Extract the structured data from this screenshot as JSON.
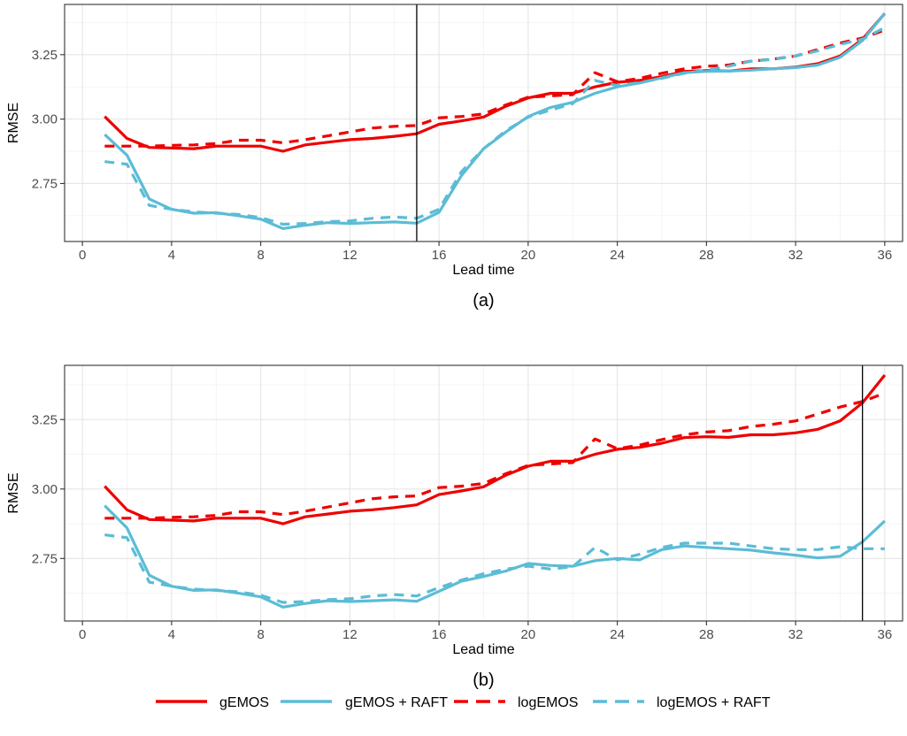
{
  "colors": {
    "gEMOS": "#ee0000",
    "logEMOS": "#ee0000",
    "raft": "#5bbcd6",
    "grid_major": "#e5e5e5",
    "grid_minor": "#f2f2f2",
    "panel_border": "#333333",
    "vline": "#000000"
  },
  "legend": {
    "position": "bottom",
    "items": [
      {
        "key": "gEMOS",
        "label": "gEMOS",
        "color": "#ee0000",
        "dash": "solid"
      },
      {
        "key": "gEMOS_RAFT",
        "label": "gEMOS + RAFT",
        "color": "#5bbcd6",
        "dash": "solid"
      },
      {
        "key": "logEMOS",
        "label": "logEMOS",
        "color": "#ee0000",
        "dash": "dashed"
      },
      {
        "key": "logEMOS_RAFT",
        "label": "logEMOS + RAFT",
        "color": "#5bbcd6",
        "dash": "dashed"
      }
    ]
  },
  "chart_data": [
    {
      "type": "line",
      "panel_label": "(a)",
      "xlabel": "Lead time",
      "ylabel": "RMSE",
      "xlim": [
        -0.8,
        36.8
      ],
      "ylim": [
        2.525,
        3.445
      ],
      "xticks": [
        0,
        4,
        8,
        12,
        16,
        20,
        24,
        28,
        32,
        36
      ],
      "yticks": [
        2.75,
        3.0,
        3.25
      ],
      "ytick_labels": [
        "2.75",
        "3.00",
        "3.25"
      ],
      "grid": true,
      "vline": 15,
      "x": [
        1,
        2,
        3,
        4,
        5,
        6,
        7,
        8,
        9,
        10,
        11,
        12,
        13,
        14,
        15,
        16,
        17,
        18,
        19,
        20,
        21,
        22,
        23,
        24,
        25,
        26,
        27,
        28,
        29,
        30,
        31,
        32,
        33,
        34,
        35,
        36
      ],
      "series": [
        {
          "name": "gEMOS",
          "color": "#ee0000",
          "dash": "solid",
          "values": [
            3.01,
            2.925,
            2.89,
            2.888,
            2.885,
            2.895,
            2.895,
            2.895,
            2.875,
            2.9,
            2.91,
            2.92,
            2.925,
            2.933,
            2.943,
            2.98,
            2.993,
            3.008,
            3.05,
            3.082,
            3.1,
            3.1,
            3.125,
            3.143,
            3.15,
            3.165,
            3.185,
            3.188,
            3.186,
            3.195,
            3.195,
            3.202,
            3.215,
            3.245,
            3.31,
            3.41
          ]
        },
        {
          "name": "gEMOS + RAFT",
          "color": "#5bbcd6",
          "dash": "solid",
          "values": [
            2.94,
            2.86,
            2.69,
            2.65,
            2.635,
            2.637,
            2.625,
            2.612,
            2.575,
            2.588,
            2.598,
            2.595,
            2.598,
            2.601,
            2.596,
            2.638,
            2.78,
            2.885,
            2.95,
            3.01,
            3.045,
            3.065,
            3.1,
            3.125,
            3.14,
            3.16,
            3.18,
            3.185,
            3.186,
            3.19,
            3.195,
            3.2,
            3.21,
            3.24,
            3.305,
            3.41
          ]
        },
        {
          "name": "logEMOS",
          "color": "#ee0000",
          "dash": "dashed",
          "values": [
            2.895,
            2.895,
            2.895,
            2.898,
            2.9,
            2.905,
            2.918,
            2.918,
            2.908,
            2.92,
            2.935,
            2.95,
            2.965,
            2.972,
            2.975,
            3.005,
            3.01,
            3.02,
            3.055,
            3.085,
            3.09,
            3.095,
            3.18,
            3.145,
            3.158,
            3.178,
            3.195,
            3.205,
            3.21,
            3.225,
            3.233,
            3.245,
            3.27,
            3.295,
            3.315,
            3.345
          ]
        },
        {
          "name": "logEMOS + RAFT",
          "color": "#5bbcd6",
          "dash": "dashed",
          "values": [
            2.835,
            2.825,
            2.665,
            2.65,
            2.64,
            2.635,
            2.63,
            2.618,
            2.592,
            2.595,
            2.602,
            2.605,
            2.615,
            2.62,
            2.615,
            2.65,
            2.795,
            2.885,
            2.955,
            3.008,
            3.035,
            3.06,
            3.15,
            3.13,
            3.142,
            3.158,
            3.178,
            3.19,
            3.205,
            3.225,
            3.232,
            3.245,
            3.265,
            3.29,
            3.31,
            3.355
          ]
        }
      ]
    },
    {
      "type": "line",
      "panel_label": "(b)",
      "xlabel": "Lead time",
      "ylabel": "RMSE",
      "xlim": [
        -0.8,
        36.8
      ],
      "ylim": [
        2.525,
        3.445
      ],
      "xticks": [
        0,
        4,
        8,
        12,
        16,
        20,
        24,
        28,
        32,
        36
      ],
      "yticks": [
        2.75,
        3.0,
        3.25
      ],
      "ytick_labels": [
        "2.75",
        "3.00",
        "3.25"
      ],
      "grid": true,
      "vline": 35,
      "x": [
        1,
        2,
        3,
        4,
        5,
        6,
        7,
        8,
        9,
        10,
        11,
        12,
        13,
        14,
        15,
        16,
        17,
        18,
        19,
        20,
        21,
        22,
        23,
        24,
        25,
        26,
        27,
        28,
        29,
        30,
        31,
        32,
        33,
        34,
        35,
        36
      ],
      "series": [
        {
          "name": "gEMOS",
          "color": "#ee0000",
          "dash": "solid",
          "values": [
            3.01,
            2.925,
            2.89,
            2.888,
            2.885,
            2.895,
            2.895,
            2.895,
            2.875,
            2.9,
            2.91,
            2.92,
            2.925,
            2.933,
            2.943,
            2.98,
            2.993,
            3.008,
            3.05,
            3.082,
            3.1,
            3.1,
            3.125,
            3.143,
            3.15,
            3.165,
            3.185,
            3.188,
            3.186,
            3.195,
            3.195,
            3.202,
            3.215,
            3.245,
            3.31,
            3.41
          ]
        },
        {
          "name": "gEMOS + RAFT",
          "color": "#5bbcd6",
          "dash": "solid",
          "values": [
            2.94,
            2.86,
            2.69,
            2.65,
            2.635,
            2.637,
            2.625,
            2.612,
            2.575,
            2.588,
            2.598,
            2.595,
            2.598,
            2.601,
            2.596,
            2.632,
            2.668,
            2.685,
            2.705,
            2.732,
            2.725,
            2.722,
            2.742,
            2.75,
            2.745,
            2.782,
            2.795,
            2.79,
            2.785,
            2.78,
            2.77,
            2.762,
            2.752,
            2.758,
            2.81,
            2.885
          ]
        },
        {
          "name": "logEMOS",
          "color": "#ee0000",
          "dash": "dashed",
          "values": [
            2.895,
            2.895,
            2.895,
            2.898,
            2.9,
            2.905,
            2.918,
            2.918,
            2.908,
            2.92,
            2.935,
            2.95,
            2.965,
            2.972,
            2.975,
            3.005,
            3.01,
            3.02,
            3.055,
            3.085,
            3.09,
            3.095,
            3.18,
            3.145,
            3.158,
            3.178,
            3.195,
            3.205,
            3.21,
            3.225,
            3.233,
            3.245,
            3.27,
            3.295,
            3.315,
            3.345
          ]
        },
        {
          "name": "logEMOS + RAFT",
          "color": "#5bbcd6",
          "dash": "dashed",
          "values": [
            2.835,
            2.825,
            2.665,
            2.65,
            2.64,
            2.635,
            2.63,
            2.618,
            2.592,
            2.595,
            2.602,
            2.605,
            2.615,
            2.62,
            2.615,
            2.645,
            2.672,
            2.695,
            2.712,
            2.722,
            2.712,
            2.72,
            2.79,
            2.745,
            2.765,
            2.79,
            2.805,
            2.805,
            2.805,
            2.795,
            2.785,
            2.782,
            2.782,
            2.792,
            2.785,
            2.785
          ]
        }
      ]
    }
  ]
}
